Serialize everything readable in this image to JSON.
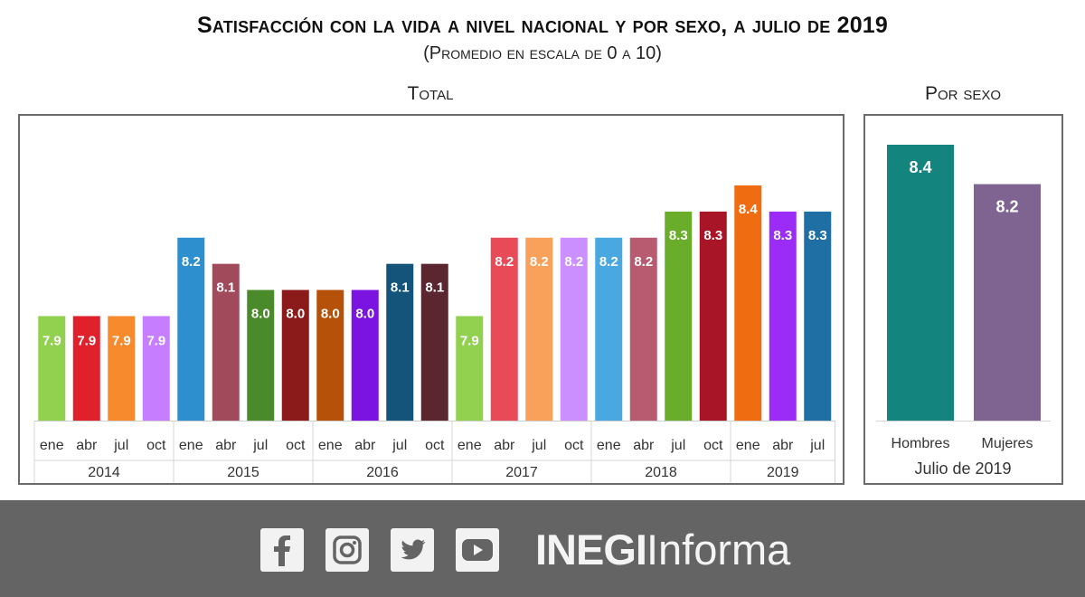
{
  "header": {
    "title": "Satisfacción con la vida a nivel nacional y por sexo, a julio de 2019",
    "subtitle": "(Promedio en escala de 0 a 10)"
  },
  "panels": {
    "total_title": "Total",
    "sexo_title": "Por sexo"
  },
  "chart_data": [
    {
      "type": "bar",
      "title": "Total",
      "categories": [
        "ene",
        "abr",
        "jul",
        "oct",
        "ene",
        "abr",
        "jul",
        "oct",
        "ene",
        "abr",
        "jul",
        "oct",
        "ene",
        "abr",
        "jul",
        "oct",
        "ene",
        "abr",
        "jul",
        "oct",
        "ene",
        "abr",
        "jul"
      ],
      "groups": [
        {
          "label": "2014",
          "count": 4
        },
        {
          "label": "2015",
          "count": 4
        },
        {
          "label": "2016",
          "count": 4
        },
        {
          "label": "2017",
          "count": 4
        },
        {
          "label": "2018",
          "count": 4
        },
        {
          "label": "2019",
          "count": 3
        }
      ],
      "values": [
        7.9,
        7.9,
        7.9,
        7.9,
        8.2,
        8.1,
        8.0,
        8.0,
        8.0,
        8.0,
        8.1,
        8.1,
        7.9,
        8.2,
        8.2,
        8.2,
        8.2,
        8.2,
        8.3,
        8.3,
        8.4,
        8.3,
        8.3
      ],
      "colors": [
        "#92d050",
        "#e0212b",
        "#f78a2d",
        "#c77dff",
        "#2e8fcf",
        "#a04a5c",
        "#4a8a2a",
        "#8b1a1a",
        "#b55109",
        "#7b14e0",
        "#14547a",
        "#5a2630",
        "#92d050",
        "#e94a57",
        "#f9a05a",
        "#cc8fff",
        "#4aa8e0",
        "#b85a70",
        "#6aad2a",
        "#a81526",
        "#ef6c10",
        "#9a2cf5",
        "#1f6fa5"
      ],
      "ylim": [
        7.5,
        8.5
      ],
      "grid": false,
      "legend": "none"
    },
    {
      "type": "bar",
      "title": "Por sexo",
      "categories": [
        "Hombres",
        "Mujeres"
      ],
      "values": [
        8.4,
        8.2
      ],
      "colors": [
        "#14857e",
        "#7f6390"
      ],
      "xlabel": "Julio de 2019",
      "ylim": [
        7.0,
        8.5
      ],
      "grid": false,
      "legend": "none"
    }
  ],
  "footer": {
    "social_icons": [
      "facebook-icon",
      "instagram-icon",
      "twitter-icon",
      "youtube-icon"
    ],
    "brand_bold": "INEGI",
    "brand_light": "Informa",
    "background": "#646464"
  }
}
